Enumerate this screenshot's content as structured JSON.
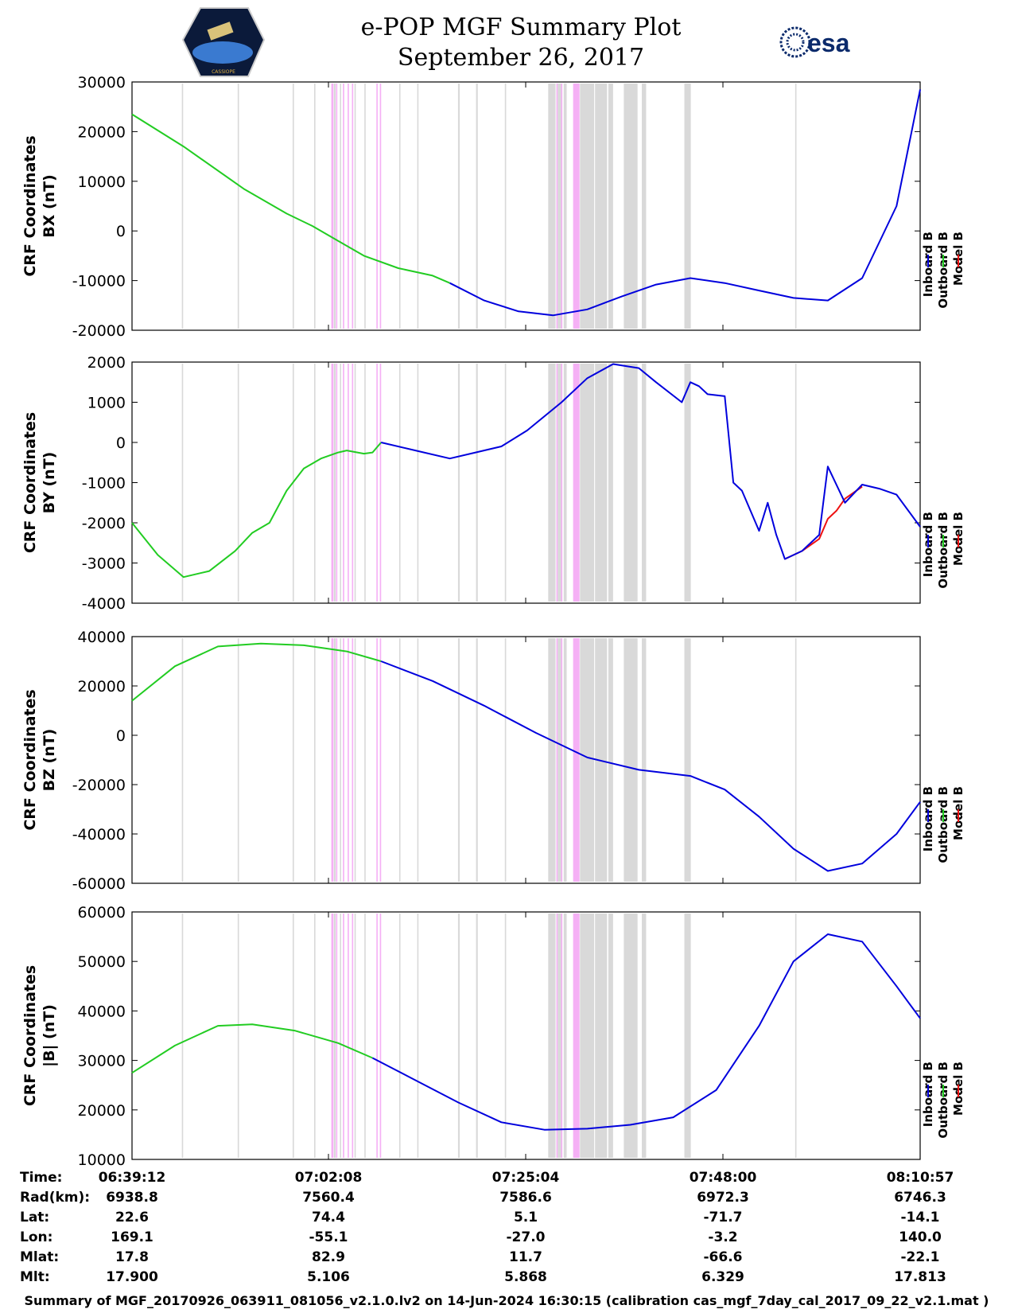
{
  "header": {
    "title_line1": "e-POP MGF Summary Plot",
    "title_line2": "September 26, 2017",
    "left_logo": "CASSIOPE",
    "right_logo": "esa"
  },
  "legend": [
    "Inboard B",
    "Outboard B",
    "Model B"
  ],
  "colors": {
    "inboard": "#0000dd",
    "outboard": "#22cc22",
    "model": "#ee1111",
    "gray_band": "#d9d9d9",
    "pink_band": "#f5b0f5"
  },
  "bands": {
    "pink": [
      [
        0.2,
        0.45
      ],
      [
        0.75,
        0.9
      ],
      [
        1.55,
        1.7
      ],
      [
        2.1,
        2.25
      ],
      [
        2.6,
        2.75
      ],
      [
        5.45,
        5.6
      ],
      [
        5.85,
        6.0
      ],
      [
        26.4,
        26.55
      ],
      [
        26.95,
        27.1
      ],
      [
        28.35,
        29.1
      ]
    ],
    "gray": [
      [
        -17.2,
        -17.05
      ],
      [
        -10.7,
        -10.55
      ],
      [
        -4.3,
        -4.15
      ],
      [
        -1.8,
        -1.65
      ],
      [
        0.5,
        0.7
      ],
      [
        1.2,
        1.35
      ],
      [
        2.9,
        3.05
      ],
      [
        4.05,
        4.2
      ],
      [
        8.1,
        8.25
      ],
      [
        10.2,
        10.35
      ],
      [
        14.95,
        15.15
      ],
      [
        17.05,
        17.25
      ],
      [
        20.4,
        20.55
      ],
      [
        25.45,
        26.3
      ],
      [
        26.55,
        27.0
      ],
      [
        27.25,
        27.6
      ],
      [
        29.15,
        30.8
      ],
      [
        30.9,
        32.3
      ],
      [
        32.45,
        33.0
      ],
      [
        34.25,
        35.85
      ],
      [
        36.35,
        36.85
      ],
      [
        41.3,
        42.05
      ],
      [
        54.2,
        54.35
      ]
    ]
  },
  "time_axis": {
    "label": "Time:",
    "ticks": [
      "06:39:12",
      "07:02:08",
      "07:25:04",
      "07:48:00",
      "08:10:57"
    ]
  },
  "info_rows": [
    {
      "label": "Rad(km):",
      "values": [
        "6938.8",
        "7560.4",
        "7586.6",
        "6972.3",
        "6746.3"
      ]
    },
    {
      "label": "Lat:",
      "values": [
        "22.6",
        "74.4",
        "5.1",
        "-71.7",
        "-14.1"
      ]
    },
    {
      "label": "Lon:",
      "values": [
        "169.1",
        "-55.1",
        "-27.0",
        "-3.2",
        "140.0"
      ]
    },
    {
      "label": "Mlat:",
      "values": [
        "17.8",
        "82.9",
        "11.7",
        "-66.6",
        "-22.1"
      ]
    },
    {
      "label": "Mlt:",
      "values": [
        "17.900",
        "5.106",
        "5.868",
        "6.329",
        "17.813"
      ]
    }
  ],
  "footer": "Summary of MGF_20170926_063911_081056_v2.1.0.lv2 on 14-Jun-2024 16:30:15 (calibration cas_mgf_7day_cal_2017_09_22_v2.1.mat )",
  "chart_data": [
    {
      "type": "line",
      "ylabel_line1": "CRF Coordinates",
      "ylabel_line2": "BX (nT)",
      "ylim": [
        -20000,
        30000
      ],
      "yticks": [
        -20000,
        -10000,
        0,
        10000,
        20000,
        30000
      ],
      "xlim": [
        -23,
        68.75
      ],
      "x_unit": "minutes from 07:02:08",
      "series": [
        {
          "name": "Outboard B",
          "color": "#22cc22",
          "x": [
            -23,
            -17,
            -10,
            -5,
            -2,
            1,
            4,
            8,
            12,
            14
          ],
          "values": [
            23500,
            17000,
            8500,
            3500,
            1000,
            -2000,
            -5000,
            -7500,
            -9000,
            -10500
          ]
        },
        {
          "name": "Inboard B",
          "color": "#0000dd",
          "x": [
            14,
            18,
            22,
            26,
            30,
            34,
            38,
            42,
            46,
            50,
            54,
            58,
            62,
            66,
            68.75
          ],
          "values": [
            -10500,
            -14000,
            -16200,
            -17000,
            -15800,
            -13200,
            -10800,
            -9500,
            -10500,
            -12000,
            -13500,
            -14000,
            -9500,
            5000,
            28500
          ]
        }
      ]
    },
    {
      "type": "line",
      "ylabel_line1": "CRF Coordinates",
      "ylabel_line2": "BY (nT)",
      "ylim": [
        -4000,
        2000
      ],
      "yticks": [
        -4000,
        -3000,
        -2000,
        -1000,
        0,
        1000,
        2000
      ],
      "xlim": [
        -23,
        68.75
      ],
      "series": [
        {
          "name": "Outboard B",
          "color": "#22cc22",
          "x": [
            -23,
            -20,
            -17,
            -14,
            -11,
            -9,
            -7,
            -5,
            -3,
            -1,
            1,
            2,
            4,
            5,
            6
          ],
          "values": [
            -2000,
            -2800,
            -3350,
            -3200,
            -2700,
            -2250,
            -2000,
            -1200,
            -650,
            -400,
            -250,
            -200,
            -280,
            -250,
            0
          ]
        },
        {
          "name": "Model B",
          "color": "#ee1111",
          "x": [
            53,
            55,
            57,
            58,
            59,
            60,
            62
          ],
          "values": [
            -2900,
            -2700,
            -2400,
            -1900,
            -1700,
            -1400,
            -1100
          ]
        },
        {
          "name": "Inboard B",
          "color": "#0000dd",
          "x": [
            6,
            10,
            14,
            17,
            20,
            23,
            27,
            30,
            33,
            36,
            38,
            41,
            42,
            43,
            44,
            46,
            47,
            48,
            50,
            51,
            52,
            53,
            55,
            57,
            58,
            60,
            62,
            64,
            66,
            68.75
          ],
          "values": [
            0,
            -200,
            -400,
            -250,
            -100,
            300,
            1000,
            1600,
            1950,
            1850,
            1500,
            1000,
            1500,
            1400,
            1200,
            1150,
            -1000,
            -1200,
            -2200,
            -1500,
            -2300,
            -2900,
            -2700,
            -2300,
            -600,
            -1500,
            -1050,
            -1150,
            -1300,
            -2100
          ]
        }
      ]
    },
    {
      "type": "line",
      "ylabel_line1": "CRF Coordinates",
      "ylabel_line2": "BZ (nT)",
      "ylim": [
        -60000,
        40000
      ],
      "yticks": [
        -60000,
        -40000,
        -20000,
        0,
        20000,
        40000
      ],
      "xlim": [
        -23,
        68.75
      ],
      "series": [
        {
          "name": "Outboard B",
          "color": "#22cc22",
          "x": [
            -23,
            -18,
            -13,
            -8,
            -3,
            2,
            6
          ],
          "values": [
            14000,
            28000,
            36000,
            37200,
            36500,
            34000,
            30000
          ]
        },
        {
          "name": "Inboard B",
          "color": "#0000dd",
          "x": [
            6,
            12,
            18,
            24,
            30,
            36,
            42,
            46,
            50,
            54,
            58,
            62,
            66,
            68.75
          ],
          "values": [
            30000,
            22000,
            12000,
            1000,
            -9000,
            -14000,
            -16500,
            -22000,
            -33000,
            -46000,
            -55000,
            -52000,
            -40000,
            -27000
          ]
        }
      ]
    },
    {
      "type": "line",
      "ylabel_line1": "CRF Coordinates",
      "ylabel_line2": "|B| (nT)",
      "ylim": [
        10000,
        60000
      ],
      "yticks": [
        10000,
        20000,
        30000,
        40000,
        50000,
        60000
      ],
      "xlim": [
        -23,
        68.75
      ],
      "series": [
        {
          "name": "Outboard B",
          "color": "#22cc22",
          "x": [
            -23,
            -18,
            -13,
            -9,
            -4,
            1,
            5
          ],
          "values": [
            27500,
            33000,
            37000,
            37300,
            36000,
            33500,
            30500
          ]
        },
        {
          "name": "Inboard B",
          "color": "#0000dd",
          "x": [
            5,
            10,
            15,
            20,
            25,
            30,
            35,
            40,
            45,
            50,
            54,
            58,
            62,
            66,
            68.75
          ],
          "values": [
            30500,
            26000,
            21500,
            17500,
            16000,
            16200,
            17000,
            18500,
            24000,
            37000,
            50000,
            55500,
            54000,
            45000,
            38500
          ]
        }
      ]
    }
  ]
}
